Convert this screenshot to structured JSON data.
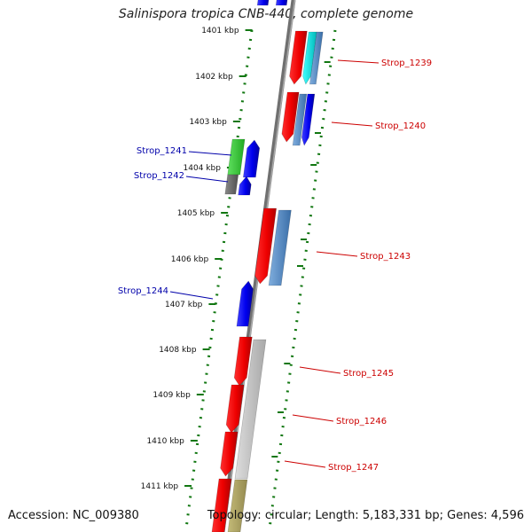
{
  "title": "Salinispora tropica CNB-440, complete genome",
  "footer": {
    "accession_label": "Accession:",
    "accession": "NC_009380",
    "topology_label": "Topology:",
    "topology": "circular;",
    "length_label": "Length:",
    "length": "5,183,331 bp;",
    "genes_label": "Genes:",
    "genes": "4,596"
  },
  "ruler_ticks": [
    "1401 kbp",
    "1402 kbp",
    "1403 kbp",
    "1404 kbp",
    "1405 kbp",
    "1406 kbp",
    "1407 kbp",
    "1408 kbp",
    "1409 kbp",
    "1410 kbp",
    "1411 kbp"
  ],
  "genes_plus": [
    "Strop_1239",
    "Strop_1240",
    "Strop_1243",
    "Strop_1245",
    "Strop_1246",
    "Strop_1247"
  ],
  "genes_minus": [
    "Strop_1241",
    "Strop_1242",
    "Strop_1244"
  ],
  "colors": {
    "plus_label": "#cc0000",
    "minus_label": "#0000aa",
    "backbone": "#707070",
    "tick": "#117711",
    "red": "#ee0000",
    "blue": "#0000ee",
    "green": "#33cc33",
    "cyan": "#00dddd",
    "steel": "#4f86c0",
    "gray": "#bbbbbb",
    "darkgray": "#606060",
    "olive": "#aaa060"
  }
}
